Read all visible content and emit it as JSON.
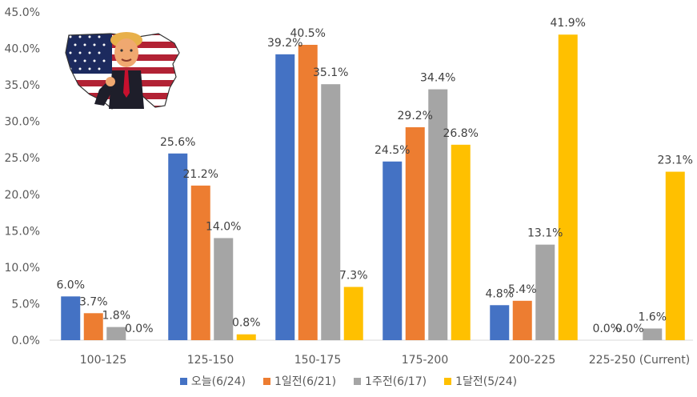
{
  "chart_data": {
    "type": "bar",
    "categories": [
      "100-125",
      "125-150",
      "150-175",
      "175-200",
      "200-225",
      "225-250 (Current)"
    ],
    "series": [
      {
        "name": "오늘(6/24)",
        "color": "#4472C4",
        "values": [
          6.0,
          25.6,
          39.2,
          24.5,
          4.8,
          0.0
        ]
      },
      {
        "name": "1일전(6/21)",
        "color": "#ED7D31",
        "values": [
          3.7,
          21.2,
          40.5,
          29.2,
          5.4,
          0.0
        ]
      },
      {
        "name": "1주전(6/17)",
        "color": "#A5A5A5",
        "values": [
          1.8,
          14.0,
          35.1,
          34.4,
          13.1,
          1.6
        ]
      },
      {
        "name": "1달전(5/24)",
        "color": "#FFC000",
        "values": [
          0.0,
          0.8,
          7.3,
          26.8,
          41.9,
          23.1
        ]
      }
    ],
    "data_labels": [
      [
        "6.0%",
        "25.6%",
        "39.2%",
        "24.5%",
        "4.8%",
        "0.0%"
      ],
      [
        "3.7%",
        "21.2%",
        "40.5%",
        "29.2%",
        "5.4%",
        "0.0%"
      ],
      [
        "1.8%",
        "14.0%",
        "35.1%",
        "34.4%",
        "13.1%",
        "1.6%"
      ],
      [
        "0.0%",
        "0.8%",
        "7.3%",
        "26.8%",
        "41.9%",
        "23.1%"
      ]
    ],
    "yticks": [
      "0.0%",
      "5.0%",
      "10.0%",
      "15.0%",
      "20.0%",
      "25.0%",
      "30.0%",
      "35.0%",
      "40.0%",
      "45.0%"
    ],
    "ylim": [
      0,
      45
    ],
    "grid": false,
    "legend_position": "bottom"
  },
  "illustration": {
    "icon": "trump-us-flag-map-icon"
  }
}
